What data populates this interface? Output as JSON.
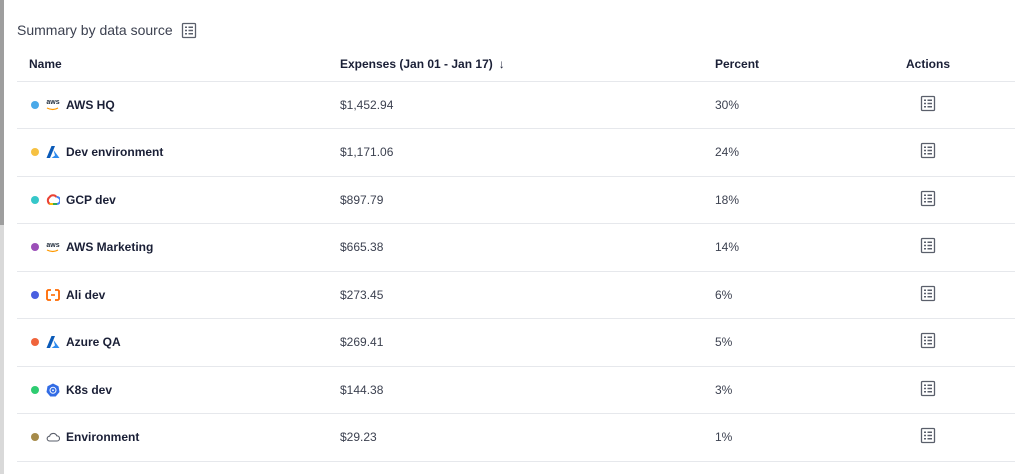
{
  "section": {
    "title": "Summary by data source"
  },
  "table": {
    "columns": {
      "name": "Name",
      "expenses": "Expenses (Jan 01 - Jan 17)",
      "percent": "Percent",
      "actions": "Actions"
    },
    "sort_icon": "arrow-down-icon",
    "rows": [
      {
        "name": "AWS HQ",
        "expenses": "$1,452.94",
        "percent": "30%",
        "dot_color": "#4aa9e9",
        "icon": "aws-icon"
      },
      {
        "name": "Dev environment",
        "expenses": "$1,171.06",
        "percent": "24%",
        "dot_color": "#f6c142",
        "icon": "azure-icon"
      },
      {
        "name": "GCP dev",
        "expenses": "$897.79",
        "percent": "18%",
        "dot_color": "#36c7c9",
        "icon": "gcp-icon"
      },
      {
        "name": "AWS Marketing",
        "expenses": "$665.38",
        "percent": "14%",
        "dot_color": "#9b4fb8",
        "icon": "aws-icon"
      },
      {
        "name": "Ali dev",
        "expenses": "$273.45",
        "percent": "6%",
        "dot_color": "#4a5fe0",
        "icon": "alibaba-icon"
      },
      {
        "name": "Azure QA",
        "expenses": "$269.41",
        "percent": "5%",
        "dot_color": "#f0643c",
        "icon": "azure-icon"
      },
      {
        "name": "K8s dev",
        "expenses": "$144.38",
        "percent": "3%",
        "dot_color": "#2ecc71",
        "icon": "kubernetes-icon"
      },
      {
        "name": "Environment",
        "expenses": "$29.23",
        "percent": "1%",
        "dot_color": "#a68b4a",
        "icon": "cloud-icon"
      }
    ]
  }
}
